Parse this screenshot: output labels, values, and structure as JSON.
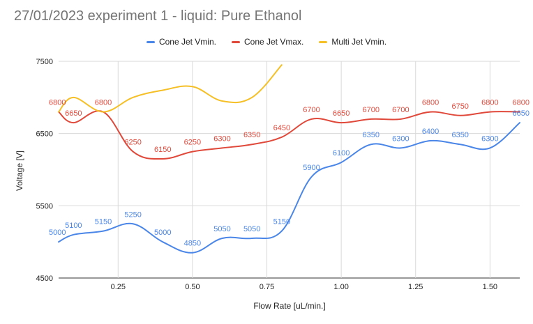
{
  "chart_data": {
    "type": "line",
    "title": "27/01/2023 experiment 1 - liquid: Pure Ethanol",
    "xlabel": "Flow Rate [uL/min.]",
    "ylabel": "Voltage [V]",
    "xlim": [
      0.05,
      1.6
    ],
    "ylim": [
      4500,
      7500
    ],
    "x_ticks": [
      "0.25",
      "0.50",
      "0.75",
      "1.00",
      "1.25",
      "1.50"
    ],
    "y_ticks": [
      "4500",
      "5500",
      "6500",
      "7500"
    ],
    "legend_position": "top",
    "grid": true,
    "series": [
      {
        "name": "Cone Jet Vmin.",
        "color": "#4a86e8",
        "x": [
          0.05,
          0.1,
          0.2,
          0.3,
          0.4,
          0.5,
          0.6,
          0.7,
          0.8,
          0.9,
          1.0,
          1.1,
          1.2,
          1.3,
          1.4,
          1.5,
          1.6
        ],
        "values": [
          5000,
          5100,
          5150,
          5250,
          5000,
          4850,
          5050,
          5050,
          5150,
          5900,
          6100,
          6350,
          6300,
          6400,
          6350,
          6300,
          6650
        ],
        "labels": [
          "5000",
          "5100",
          "5150",
          "5250",
          "5000",
          "4850",
          "5050",
          "5050",
          "5150",
          "5900",
          "6100",
          "6350",
          "6300",
          "6400",
          "6350",
          "6300",
          "6650"
        ]
      },
      {
        "name": "Cone Jet Vmax.",
        "color": "#e0483a",
        "x": [
          0.05,
          0.1,
          0.2,
          0.3,
          0.4,
          0.5,
          0.6,
          0.7,
          0.8,
          0.9,
          1.0,
          1.1,
          1.2,
          1.3,
          1.4,
          1.5,
          1.6
        ],
        "values": [
          6800,
          6650,
          6800,
          6250,
          6150,
          6250,
          6300,
          6350,
          6450,
          6700,
          6650,
          6700,
          6700,
          6800,
          6750,
          6800,
          6800
        ],
        "labels": [
          "6800",
          "6650",
          "6800",
          "6250",
          "6150",
          "6250",
          "6300",
          "6350",
          "6450",
          "6700",
          "6650",
          "6700",
          "6700",
          "6800",
          "6750",
          "6800",
          "6800"
        ]
      },
      {
        "name": "Multi Jet Vmin.",
        "color": "#f5bf26",
        "x": [
          0.05,
          0.1,
          0.2,
          0.3,
          0.4,
          0.5,
          0.6,
          0.7,
          0.8
        ],
        "values": [
          6800,
          7000,
          6800,
          7000,
          7100,
          7150,
          6950,
          7000,
          7450
        ],
        "labels": []
      }
    ]
  }
}
